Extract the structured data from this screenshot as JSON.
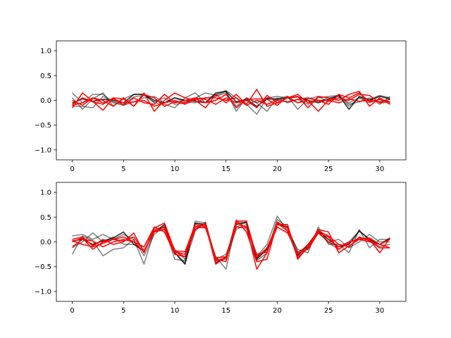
{
  "chart_data": [
    {
      "type": "line",
      "title": "",
      "xlabel": "",
      "ylabel": "",
      "xlim": [
        -1.55,
        32.55
      ],
      "ylim": [
        -1.2,
        1.2
      ],
      "xticks": [
        0,
        5,
        10,
        15,
        20,
        25,
        30
      ],
      "yticks": [
        -1.0,
        -0.5,
        0.0,
        0.5,
        1.0
      ],
      "xtick_labels": [
        "0",
        "5",
        "10",
        "15",
        "20",
        "25",
        "30"
      ],
      "ytick_labels": [
        "−1.0",
        "−0.5",
        "0.0",
        "0.5",
        "1.0"
      ],
      "grid": false,
      "x": [
        0,
        1,
        2,
        3,
        4,
        5,
        6,
        7,
        8,
        9,
        10,
        11,
        12,
        13,
        14,
        15,
        16,
        17,
        18,
        19,
        20,
        21,
        22,
        23,
        24,
        25,
        26,
        27,
        28,
        29,
        30,
        31
      ],
      "series": [
        {
          "color": "#000000",
          "opacity": 0.5,
          "values": [
            0.15,
            -0.05,
            0.12,
            0.12,
            -0.03,
            -0.08,
            0.07,
            0.1,
            -0.03,
            0.05,
            -0.08,
            -0.05,
            0.05,
            0.15,
            0.1,
            0.18,
            -0.22,
            0.05,
            -0.05,
            0.05,
            0.08,
            0.05,
            -0.05,
            0.05,
            -0.03,
            0.05,
            0.08,
            -0.05,
            0.05,
            0.02,
            0.1,
            0.05
          ]
        },
        {
          "color": "#000000",
          "opacity": 0.5,
          "values": [
            0.05,
            -0.18,
            0.03,
            0.15,
            -0.12,
            0.03,
            0.12,
            0.12,
            -0.05,
            -0.08,
            -0.15,
            0.05,
            0.15,
            -0.05,
            0.12,
            0.2,
            0.05,
            -0.08,
            -0.28,
            0.05,
            0.03,
            0.08,
            -0.18,
            0.03,
            0.08,
            -0.03,
            0.12,
            -0.08,
            -0.03,
            0.05,
            -0.08,
            0.08
          ]
        },
        {
          "color": "#000000",
          "opacity": 0.5,
          "values": [
            -0.12,
            -0.12,
            -0.15,
            0.08,
            -0.05,
            -0.1,
            -0.03,
            0.05,
            0.08,
            -0.05,
            0.05,
            -0.03,
            -0.05,
            0.05,
            0.08,
            0.15,
            -0.12,
            0.05,
            -0.05,
            -0.22,
            0.05,
            -0.05,
            0.02,
            -0.08,
            0.05,
            0.08,
            0.1,
            -0.12,
            0.05,
            -0.05,
            0.03,
            -0.03
          ]
        },
        {
          "color": "#000000",
          "opacity": 0.85,
          "values": [
            -0.05,
            0.03,
            -0.02,
            0.02,
            0.0,
            -0.05,
            0.12,
            0.12,
            0.0,
            -0.05,
            0.05,
            0.0,
            -0.02,
            -0.05,
            0.15,
            0.18,
            -0.03,
            0.02,
            -0.12,
            0.03,
            0.02,
            0.05,
            0.07,
            0.0,
            -0.05,
            0.02,
            0.1,
            -0.18,
            0.08,
            0.0,
            0.08,
            0.03
          ]
        },
        {
          "color": "#ff0000",
          "opacity": 1.0,
          "values": [
            -0.15,
            0.15,
            -0.02,
            -0.2,
            0.05,
            0.03,
            -0.12,
            0.15,
            -0.22,
            0.0,
            0.15,
            0.05,
            0.0,
            -0.15,
            0.12,
            -0.05,
            0.12,
            -0.08,
            0.22,
            -0.12,
            -0.05,
            0.05,
            0.08,
            -0.15,
            0.08,
            0.05,
            0.0,
            0.12,
            0.18,
            -0.12,
            0.05,
            -0.08
          ]
        },
        {
          "color": "#ff0000",
          "opacity": 1.0,
          "values": [
            0.0,
            -0.1,
            0.05,
            0.0,
            -0.12,
            0.05,
            -0.12,
            0.12,
            0.05,
            -0.12,
            -0.03,
            -0.05,
            0.03,
            -0.05,
            0.0,
            0.12,
            -0.15,
            0.02,
            0.03,
            0.02,
            -0.1,
            0.08,
            -0.05,
            0.0,
            -0.22,
            0.0,
            0.05,
            0.0,
            0.12,
            0.1,
            -0.05,
            -0.03
          ]
        },
        {
          "color": "#ff0000",
          "opacity": 1.0,
          "values": [
            -0.08,
            0.05,
            -0.03,
            -0.08,
            0.05,
            -0.1,
            0.05,
            -0.05,
            -0.08,
            0.12,
            -0.05,
            0.0,
            0.05,
            0.02,
            -0.08,
            0.05,
            -0.05,
            0.0,
            -0.15,
            0.1,
            -0.05,
            0.05,
            0.12,
            -0.05,
            0.0,
            -0.08,
            0.12,
            0.05,
            0.15,
            -0.03,
            0.02,
            -0.05
          ]
        },
        {
          "color": "#ff0000",
          "opacity": 1.0,
          "values": [
            -0.1,
            -0.05,
            0.05,
            -0.05,
            0.03,
            -0.05,
            -0.03,
            0.0,
            -0.12,
            -0.05,
            0.0,
            -0.08,
            0.02,
            0.05,
            0.05,
            0.0,
            0.05,
            -0.1,
            0.0,
            -0.08,
            0.0,
            -0.03,
            0.02,
            0.05,
            0.0,
            0.0,
            -0.05,
            0.03,
            -0.02,
            0.0,
            -0.03,
            0.02
          ]
        }
      ]
    },
    {
      "type": "line",
      "title": "",
      "xlabel": "",
      "ylabel": "",
      "xlim": [
        -1.55,
        32.55
      ],
      "ylim": [
        -1.2,
        1.2
      ],
      "xticks": [
        0,
        5,
        10,
        15,
        20,
        25,
        30
      ],
      "yticks": [
        -1.0,
        -0.5,
        0.0,
        0.5,
        1.0
      ],
      "xtick_labels": [
        "0",
        "5",
        "10",
        "15",
        "20",
        "25",
        "30"
      ],
      "ytick_labels": [
        "−1.0",
        "−0.5",
        "0.0",
        "0.5",
        "1.0"
      ],
      "grid": false,
      "x": [
        0,
        1,
        2,
        3,
        4,
        5,
        6,
        7,
        8,
        9,
        10,
        11,
        12,
        13,
        14,
        15,
        16,
        17,
        18,
        19,
        20,
        21,
        22,
        23,
        24,
        25,
        26,
        27,
        28,
        29,
        30,
        31
      ],
      "series": [
        {
          "color": "#000000",
          "opacity": 0.5,
          "values": [
            0.12,
            0.15,
            0.05,
            0.15,
            0.05,
            0.15,
            0.05,
            -0.45,
            0.22,
            0.28,
            -0.15,
            -0.35,
            0.38,
            0.32,
            -0.3,
            -0.55,
            0.4,
            0.38,
            -0.3,
            -0.05,
            0.52,
            0.22,
            -0.15,
            -0.22,
            0.3,
            -0.05,
            -0.05,
            -0.22,
            0.25,
            -0.12,
            0.05,
            0.05
          ]
        },
        {
          "color": "#000000",
          "opacity": 0.5,
          "values": [
            -0.25,
            0.12,
            0.02,
            -0.28,
            -0.15,
            -0.12,
            0.05,
            -0.28,
            0.15,
            0.32,
            -0.22,
            -0.42,
            0.22,
            0.4,
            -0.38,
            -0.35,
            0.25,
            0.35,
            -0.38,
            -0.22,
            0.4,
            0.22,
            -0.32,
            -0.08,
            0.2,
            -0.02,
            -0.15,
            0.0,
            0.22,
            0.05,
            -0.1,
            -0.05
          ]
        },
        {
          "color": "#000000",
          "opacity": 0.5,
          "values": [
            -0.12,
            0.0,
            0.18,
            0.0,
            0.1,
            -0.05,
            -0.05,
            -0.1,
            0.25,
            0.3,
            -0.35,
            -0.38,
            0.42,
            0.38,
            -0.35,
            -0.25,
            0.3,
            0.4,
            -0.28,
            -0.2,
            0.45,
            0.3,
            -0.2,
            -0.1,
            0.25,
            0.0,
            0.05,
            -0.12,
            0.0,
            0.15,
            0.0,
            0.0
          ]
        },
        {
          "color": "#000000",
          "opacity": 0.85,
          "values": [
            0.02,
            0.05,
            -0.05,
            0.02,
            0.08,
            0.2,
            -0.05,
            -0.18,
            0.2,
            0.35,
            -0.22,
            -0.45,
            0.38,
            0.35,
            -0.42,
            -0.32,
            0.35,
            0.4,
            -0.35,
            -0.15,
            0.35,
            0.3,
            -0.28,
            -0.05,
            0.22,
            0.05,
            -0.1,
            -0.05,
            0.22,
            0.05,
            -0.05,
            0.08
          ]
        },
        {
          "color": "#ff0000",
          "opacity": 1.0,
          "values": [
            0.05,
            0.1,
            -0.08,
            0.05,
            -0.05,
            0.0,
            0.18,
            -0.22,
            0.28,
            0.38,
            -0.18,
            -0.2,
            0.35,
            0.3,
            -0.35,
            -0.4,
            0.42,
            0.42,
            -0.32,
            -0.12,
            0.35,
            0.35,
            -0.35,
            -0.1,
            0.25,
            0.2,
            -0.22,
            -0.08,
            0.05,
            0.0,
            -0.05,
            -0.12
          ]
        },
        {
          "color": "#ff0000",
          "opacity": 1.0,
          "values": [
            -0.1,
            0.05,
            0.02,
            -0.1,
            0.0,
            0.05,
            0.0,
            -0.1,
            0.3,
            0.2,
            -0.25,
            -0.3,
            0.3,
            0.35,
            -0.45,
            -0.3,
            0.38,
            0.3,
            -0.55,
            -0.22,
            0.4,
            0.28,
            -0.32,
            -0.12,
            0.22,
            0.12,
            -0.05,
            -0.1,
            0.1,
            0.02,
            -0.12,
            -0.12
          ]
        },
        {
          "color": "#ff0000",
          "opacity": 1.0,
          "values": [
            0.0,
            0.08,
            -0.15,
            0.0,
            0.05,
            0.02,
            0.1,
            -0.18,
            0.22,
            0.3,
            -0.2,
            -0.3,
            0.25,
            0.38,
            -0.38,
            -0.32,
            0.44,
            0.2,
            -0.4,
            -0.35,
            0.38,
            0.22,
            -0.25,
            -0.05,
            0.18,
            0.1,
            -0.15,
            -0.02,
            0.08,
            0.05,
            -0.22,
            0.08
          ]
        },
        {
          "color": "#ff0000",
          "opacity": 1.0,
          "values": [
            0.02,
            -0.05,
            -0.1,
            -0.03,
            0.05,
            0.1,
            0.0,
            -0.2,
            0.2,
            0.25,
            -0.2,
            -0.25,
            0.3,
            0.28,
            -0.32,
            -0.3,
            0.3,
            0.28,
            -0.25,
            -0.2,
            0.3,
            0.18,
            -0.22,
            -0.15,
            0.18,
            0.0,
            -0.1,
            0.0,
            0.05,
            0.08,
            -0.05,
            0.05
          ]
        }
      ]
    }
  ]
}
